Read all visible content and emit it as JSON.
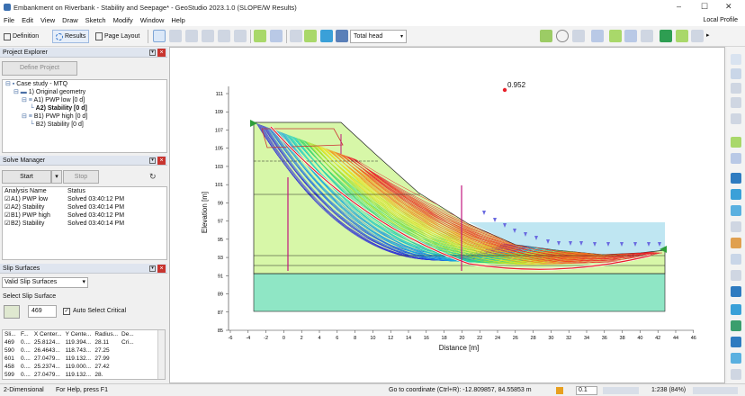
{
  "window": {
    "title": "Embankment on Riverbank - Stability and Seepage* - GeoStudio 2023.1.0 (SLOPE/W Results)",
    "minimize": "–",
    "restore": "☐",
    "close": "✕"
  },
  "menu": {
    "items": [
      "File",
      "Edit",
      "View",
      "Draw",
      "Sketch",
      "Modify",
      "Window",
      "Help"
    ],
    "profile": "Local Profile"
  },
  "toolbar": {
    "definition": "Definition",
    "results": "Results",
    "page_layout": "Page Layout",
    "view_select": "Total head"
  },
  "project_explorer": {
    "title": "Project Explorer",
    "define_button": "Define Project",
    "tree": [
      {
        "label": "Case study - MTQ",
        "indent": 0,
        "bold": false
      },
      {
        "label": "1) Original geometry",
        "indent": 1,
        "bold": false
      },
      {
        "label": "A1) PWP low [0 d]",
        "indent": 2,
        "bold": false
      },
      {
        "label": "A2) Stability [0 d]",
        "indent": 3,
        "bold": true
      },
      {
        "label": "B1) PWP high [0 d]",
        "indent": 2,
        "bold": false
      },
      {
        "label": "B2) Stability [0 d]",
        "indent": 3,
        "bold": false
      }
    ]
  },
  "solve_manager": {
    "title": "Solve Manager",
    "start": "Start",
    "stop": "Stop",
    "col_name": "Analysis Name",
    "col_status": "Status",
    "rows": [
      {
        "name": "A1) PWP low",
        "status": "Solved 03:40:12 PM"
      },
      {
        "name": "A2) Stability",
        "status": "Solved 03:40:14 PM"
      },
      {
        "name": "B1) PWP high",
        "status": "Solved 03:40:12 PM"
      },
      {
        "name": "B2) Stability",
        "status": "Solved 03:40:14 PM"
      }
    ]
  },
  "slip_surfaces": {
    "title": "Slip Surfaces",
    "filter": "Valid Slip Surfaces",
    "select_label": "Select Slip Surface",
    "number": "469",
    "auto_select": "Auto Select Critical",
    "columns": [
      "Sli...",
      "F...",
      "X Center...",
      "Y Cente...",
      "Radius...",
      "De..."
    ],
    "rows": [
      [
        "469",
        "0....",
        "25.8124...",
        "119.394...",
        "28.11",
        "Cri..."
      ],
      [
        "590",
        "0....",
        "26.4643...",
        "118.743...",
        "27.25",
        ""
      ],
      [
        "601",
        "0....",
        "27.0479...",
        "119.132...",
        "27.99",
        ""
      ],
      [
        "458",
        "0....",
        "25.2374...",
        "119.000...",
        "27.42",
        ""
      ],
      [
        "599",
        "0....",
        "27.0479...",
        "119.132...",
        "28.",
        ""
      ]
    ]
  },
  "plot": {
    "fos": "0.952",
    "x_label": "Distance [m]",
    "y_label": "Elevation [m]",
    "x_ticks": [
      "-6",
      "-4",
      "-2",
      "0",
      "2",
      "4",
      "6",
      "8",
      "10",
      "12",
      "14",
      "16",
      "18",
      "20",
      "22",
      "24",
      "26",
      "28",
      "30",
      "32",
      "34",
      "36",
      "38",
      "40",
      "42",
      "44",
      "46"
    ],
    "y_ticks": [
      "111",
      "109",
      "107",
      "105",
      "103",
      "101",
      "99",
      "97",
      "95",
      "93",
      "91",
      "89",
      "87",
      "85"
    ]
  },
  "status": {
    "mode": "2-Dimensional",
    "help": "For Help, press F1",
    "coords": "Go to coordinate (Ctrl+R): -12.809857, 84.55853 m",
    "zoom_step": "0.1",
    "scale": "1:238 (84%)"
  },
  "colors": {
    "soil": "#d7f7a8",
    "water": "#bfe6f2",
    "crit": "#e8202a",
    "base": "#8fe6c5"
  }
}
